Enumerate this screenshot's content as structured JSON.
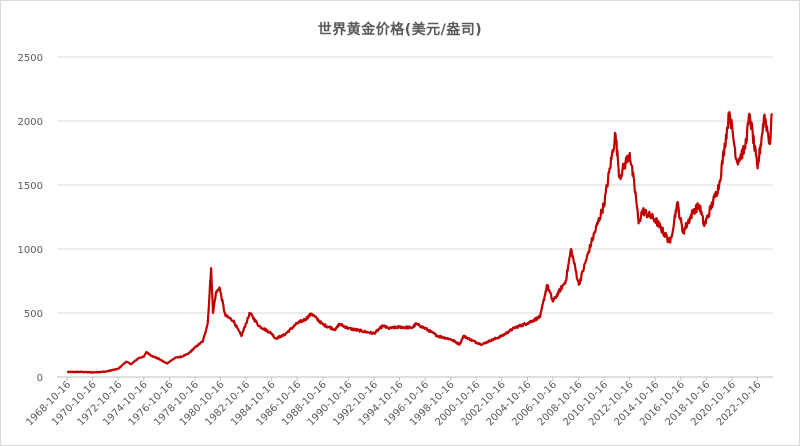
{
  "chart_data": {
    "type": "line",
    "title": "世界黄金价格(美元/盎司)",
    "xlabel": "",
    "ylabel": "",
    "ylim": [
      0,
      2500
    ],
    "yticks": [
      0,
      500,
      1000,
      1500,
      2000,
      2500
    ],
    "grid": true,
    "legend": "none",
    "line_color": "#c00000",
    "x_tick_labels": [
      "1968-10-16",
      "1970-10-16",
      "1972-10-16",
      "1974-10-16",
      "1976-10-16",
      "1978-10-16",
      "1980-10-16",
      "1982-10-16",
      "1984-10-16",
      "1986-10-16",
      "1988-10-16",
      "1990-10-16",
      "1992-10-16",
      "1994-10-16",
      "1996-10-16",
      "1998-10-16",
      "2000-10-16",
      "2002-10-16",
      "2004-10-16",
      "2006-10-16",
      "2008-10-16",
      "2010-10-16",
      "2012-10-16",
      "2014-10-16",
      "2016-10-16",
      "2018-10-16",
      "2020-10-16",
      "2022-10-16"
    ],
    "series": [
      {
        "values": [
          [
            "1968-10-16",
            39
          ],
          [
            "1969-10-16",
            40
          ],
          [
            "1970-10-16",
            36
          ],
          [
            "1971-10-16",
            42
          ],
          [
            "1972-10-16",
            64
          ],
          [
            "1973-06-01",
            120
          ],
          [
            "1973-10-16",
            100
          ],
          [
            "1974-06-01",
            150
          ],
          [
            "1974-10-16",
            158
          ],
          [
            "1974-12-31",
            195
          ],
          [
            "1975-06-01",
            165
          ],
          [
            "1976-01-01",
            140
          ],
          [
            "1976-08-01",
            105
          ],
          [
            "1977-04-01",
            150
          ],
          [
            "1977-10-16",
            160
          ],
          [
            "1978-04-01",
            180
          ],
          [
            "1978-10-16",
            230
          ],
          [
            "1979-06-01",
            280
          ],
          [
            "1979-10-16",
            420
          ],
          [
            "1980-01-21",
            850
          ],
          [
            "1980-03-15",
            500
          ],
          [
            "1980-06-01",
            650
          ],
          [
            "1980-09-15",
            700
          ],
          [
            "1981-03-01",
            480
          ],
          [
            "1981-10-16",
            440
          ],
          [
            "1982-06-01",
            320
          ],
          [
            "1982-10-16",
            420
          ],
          [
            "1983-02-01",
            500
          ],
          [
            "1983-10-16",
            400
          ],
          [
            "1984-10-16",
            340
          ],
          [
            "1985-02-01",
            300
          ],
          [
            "1985-10-16",
            330
          ],
          [
            "1986-10-16",
            420
          ],
          [
            "1987-06-01",
            450
          ],
          [
            "1987-12-01",
            495
          ],
          [
            "1988-10-16",
            410
          ],
          [
            "1989-10-16",
            370
          ],
          [
            "1990-02-01",
            415
          ],
          [
            "1990-10-16",
            380
          ],
          [
            "1991-10-16",
            360
          ],
          [
            "1992-10-16",
            340
          ],
          [
            "1993-07-01",
            400
          ],
          [
            "1993-12-01",
            380
          ],
          [
            "1994-10-16",
            390
          ],
          [
            "1995-10-16",
            385
          ],
          [
            "1996-02-01",
            415
          ],
          [
            "1996-10-16",
            380
          ],
          [
            "1997-10-16",
            320
          ],
          [
            "1998-10-16",
            295
          ],
          [
            "1999-07-01",
            255
          ],
          [
            "1999-10-16",
            320
          ],
          [
            "2000-10-16",
            270
          ],
          [
            "2001-04-01",
            255
          ],
          [
            "2001-10-16",
            280
          ],
          [
            "2002-10-16",
            320
          ],
          [
            "2003-10-16",
            385
          ],
          [
            "2004-10-16",
            420
          ],
          [
            "2005-10-16",
            470
          ],
          [
            "2006-05-01",
            720
          ],
          [
            "2006-10-16",
            590
          ],
          [
            "2007-10-16",
            750
          ],
          [
            "2008-03-17",
            1000
          ],
          [
            "2008-10-24",
            720
          ],
          [
            "2009-10-16",
            1050
          ],
          [
            "2010-10-16",
            1350
          ],
          [
            "2011-09-06",
            1900
          ],
          [
            "2011-12-29",
            1560
          ],
          [
            "2012-10-16",
            1750
          ],
          [
            "2013-04-15",
            1400
          ],
          [
            "2013-06-28",
            1200
          ],
          [
            "2013-10-16",
            1300
          ],
          [
            "2014-10-16",
            1230
          ],
          [
            "2015-12-17",
            1050
          ],
          [
            "2016-07-06",
            1360
          ],
          [
            "2016-12-15",
            1130
          ],
          [
            "2017-10-16",
            1300
          ],
          [
            "2018-04-01",
            1340
          ],
          [
            "2018-08-16",
            1180
          ],
          [
            "2019-10-16",
            1500
          ],
          [
            "2020-08-06",
            2070
          ],
          [
            "2021-03-08",
            1680
          ],
          [
            "2021-10-16",
            1780
          ],
          [
            "2022-03-08",
            2050
          ],
          [
            "2022-10-16",
            1630
          ],
          [
            "2023-05-04",
            2050
          ],
          [
            "2023-10-06",
            1820
          ],
          [
            "2023-12-04",
            2060
          ]
        ]
      }
    ]
  }
}
